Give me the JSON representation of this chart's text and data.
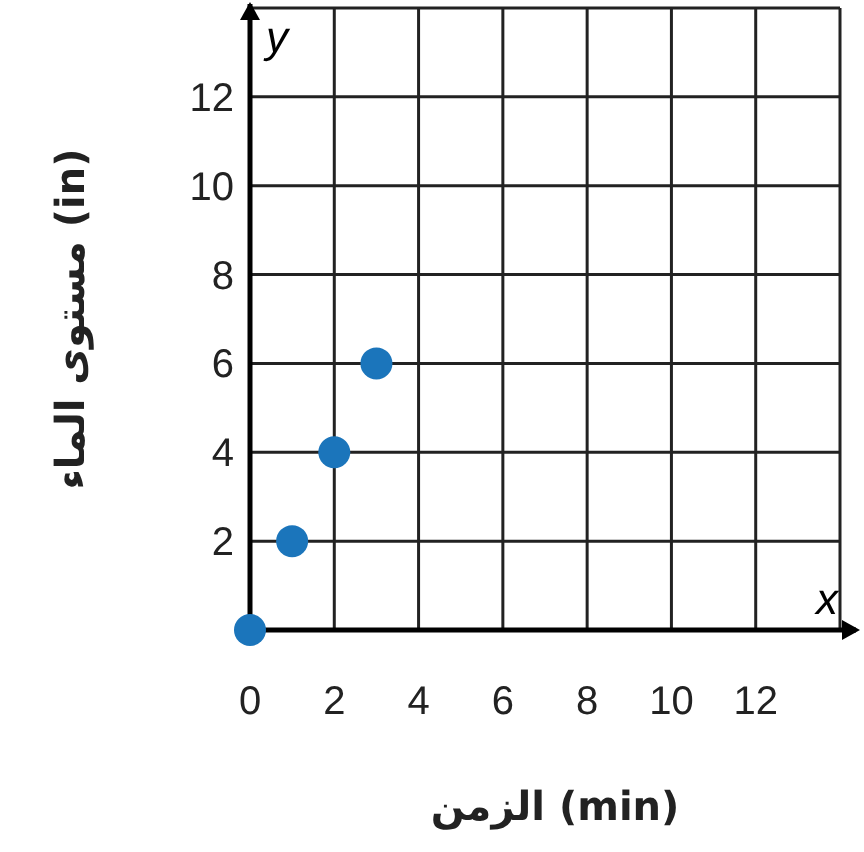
{
  "chart_data": {
    "type": "scatter",
    "xlabel": "الزمن (min)",
    "ylabel": "مستوى الماء (in)",
    "annotations": [
      "y",
      "x"
    ],
    "x": [
      0,
      1,
      2,
      3
    ],
    "series": [
      {
        "color": "#1b75bb",
        "values": [
          0,
          2,
          4,
          6
        ]
      }
    ],
    "xlim": [
      0,
      14
    ],
    "ylim": [
      0,
      14
    ],
    "xticks": [
      0,
      2,
      4,
      6,
      8,
      10,
      12
    ],
    "yticks": [
      2,
      4,
      6,
      8,
      10,
      12
    ],
    "grid": true,
    "marker": "circle"
  }
}
